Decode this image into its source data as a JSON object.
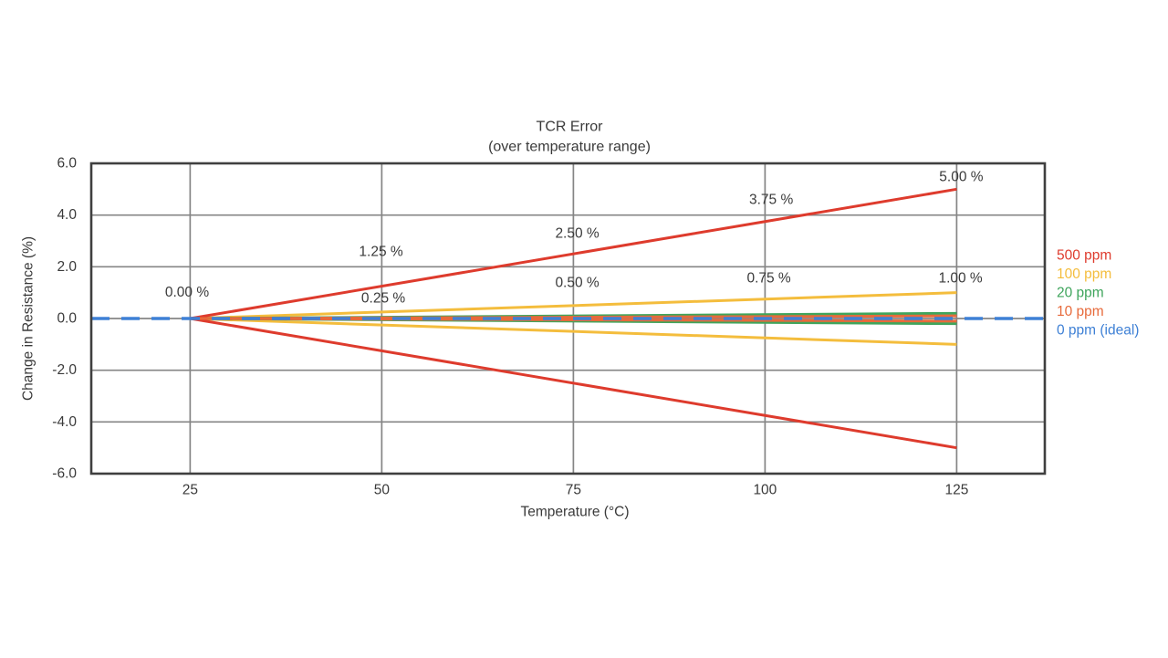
{
  "chart_data": {
    "type": "line",
    "title": "TCR Error",
    "subtitle": "(over temperature range)",
    "xlabel": "Temperature (°C)",
    "ylabel": "Change in Resistance (%)",
    "xlim": [
      12.1,
      136.5
    ],
    "ylim": [
      -6,
      6
    ],
    "grid": true,
    "x_ticks": [
      25,
      50,
      75,
      100,
      125
    ],
    "x_tick_labels": [
      "25",
      "50",
      "75",
      "100",
      "125"
    ],
    "y_ticks": [
      6,
      4,
      2,
      0,
      -2,
      -4,
      -6
    ],
    "y_tick_labels": [
      "6.0",
      "4.0",
      "2.0",
      "0.0",
      "-2.0",
      "-4.0",
      "-6.0"
    ],
    "y_gridlines": [
      4,
      2,
      0,
      -2,
      -4
    ],
    "series": [
      {
        "name": "100 ppm",
        "color_key": "amber",
        "dash": false,
        "branches": [
          [
            [
              25,
              0
            ],
            [
              125,
              1.0
            ]
          ],
          [
            [
              25,
              0
            ],
            [
              125,
              -1.0
            ]
          ]
        ]
      },
      {
        "name": "20 ppm",
        "color_key": "green",
        "dash": false,
        "branches": [
          [
            [
              25,
              0
            ],
            [
              125,
              0.2
            ]
          ],
          [
            [
              25,
              0
            ],
            [
              125,
              -0.2
            ]
          ]
        ]
      },
      {
        "name": "500 ppm",
        "color_key": "red",
        "dash": false,
        "branches": [
          [
            [
              25,
              0
            ],
            [
              125,
              5.0
            ]
          ],
          [
            [
              25,
              0
            ],
            [
              125,
              -5.0
            ]
          ]
        ]
      },
      {
        "name": "10 ppm",
        "color_key": "orange",
        "dash": false,
        "branches": [
          [
            [
              25,
              0
            ],
            [
              125,
              0.1
            ]
          ],
          [
            [
              25,
              0
            ],
            [
              125,
              -0.1
            ]
          ]
        ]
      },
      {
        "name": "0 ppm (ideal)",
        "color_key": "blue",
        "dash": true,
        "branches": [
          [
            [
              12.1,
              0
            ],
            [
              136.5,
              0
            ]
          ]
        ]
      }
    ],
    "annotations": [
      {
        "text": "0.00 %",
        "x": 24.6,
        "y": 1.0
      },
      {
        "text": "1.25 %",
        "x": 49.9,
        "y": 2.58
      },
      {
        "text": "0.25 %",
        "x": 50.2,
        "y": 0.78
      },
      {
        "text": "2.50 %",
        "x": 75.5,
        "y": 3.28
      },
      {
        "text": "0.50 %",
        "x": 75.5,
        "y": 1.38
      },
      {
        "text": "3.75 %",
        "x": 100.8,
        "y": 4.59
      },
      {
        "text": "0.75 %",
        "x": 100.5,
        "y": 1.55
      },
      {
        "text": "5.00 %",
        "x": 125.6,
        "y": 5.47
      },
      {
        "text": "1.00 %",
        "x": 125.5,
        "y": 1.55
      }
    ],
    "legend": {
      "position": "right",
      "entries": [
        {
          "label": "500 ppm",
          "color_key": "red"
        },
        {
          "label": "100 ppm",
          "color_key": "amber"
        },
        {
          "label": "20 ppm",
          "color_key": "green"
        },
        {
          "label": "10 ppm",
          "color_key": "orange"
        },
        {
          "label": "0 ppm (ideal)",
          "color_key": "blue"
        }
      ]
    },
    "colors": {
      "red": "#de3b2d",
      "amber": "#f4bd3d",
      "green": "#3fa55c",
      "orange": "#e76a3b",
      "blue": "#3e80d5",
      "grid": "#858585",
      "frame": "#3f3f3f",
      "text": "#3a3a3a"
    }
  }
}
